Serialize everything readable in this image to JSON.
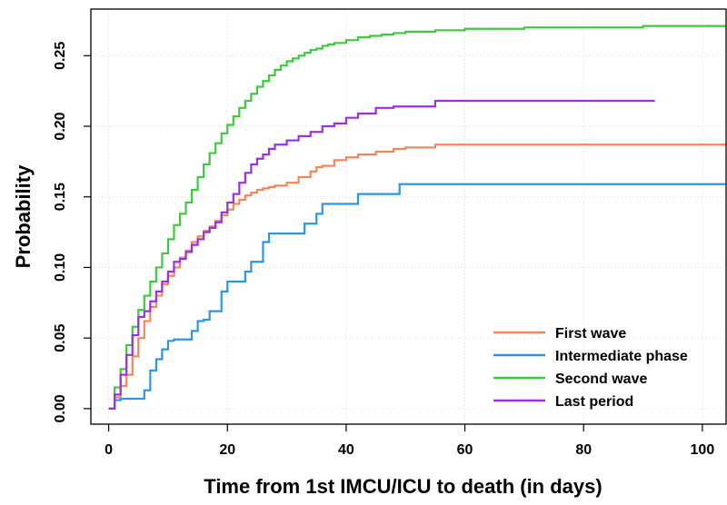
{
  "chart_data": {
    "type": "line",
    "step": true,
    "title": "",
    "xlabel": "Time from 1st IMCU/ICU to death (in days)",
    "ylabel": "Probability",
    "xlim": [
      -3,
      104
    ],
    "ylim": [
      -0.011,
      0.283
    ],
    "x_ticks": [
      0,
      20,
      40,
      60,
      80,
      100
    ],
    "x_tick_labels": [
      "0",
      "20",
      "40",
      "60",
      "80",
      "100"
    ],
    "y_ticks": [
      0.0,
      0.05,
      0.1,
      0.15,
      0.2,
      0.25
    ],
    "y_tick_labels": [
      "0.00",
      "0.05",
      "0.10",
      "0.15",
      "0.20",
      "0.25"
    ],
    "grid": true,
    "legend_position": "bottom-right",
    "series": [
      {
        "name": "First wave",
        "color": "#F0875A",
        "x": [
          0,
          1,
          2,
          3,
          4,
          5,
          6,
          7,
          8,
          9,
          10,
          11,
          12,
          13,
          14,
          15,
          16,
          17,
          18,
          19,
          20,
          21,
          22,
          23,
          24,
          25,
          26,
          27,
          28,
          30,
          32,
          34,
          35,
          36,
          38,
          40,
          42,
          45,
          48,
          50,
          55,
          104
        ],
        "y": [
          0,
          0.008,
          0.016,
          0.024,
          0.037,
          0.05,
          0.062,
          0.072,
          0.08,
          0.088,
          0.094,
          0.1,
          0.107,
          0.112,
          0.118,
          0.122,
          0.126,
          0.129,
          0.133,
          0.137,
          0.141,
          0.145,
          0.148,
          0.151,
          0.153,
          0.155,
          0.156,
          0.157,
          0.158,
          0.16,
          0.164,
          0.168,
          0.171,
          0.172,
          0.176,
          0.178,
          0.18,
          0.182,
          0.184,
          0.185,
          0.187,
          0.187
        ]
      },
      {
        "name": "Intermediate phase",
        "color": "#2E95E0",
        "x": [
          0,
          1,
          2,
          6,
          7,
          8,
          9,
          10,
          11,
          14,
          15,
          16,
          17,
          19,
          20,
          22,
          23,
          24,
          26,
          27,
          28,
          33,
          35,
          36,
          42,
          49,
          104
        ],
        "y": [
          0,
          0.006,
          0.007,
          0.013,
          0.027,
          0.035,
          0.042,
          0.048,
          0.049,
          0.055,
          0.062,
          0.063,
          0.069,
          0.083,
          0.09,
          0.09,
          0.097,
          0.104,
          0.118,
          0.124,
          0.124,
          0.131,
          0.138,
          0.145,
          0.152,
          0.159,
          0.159
        ]
      },
      {
        "name": "Second wave",
        "color": "#3EC93E",
        "x": [
          0,
          1,
          2,
          3,
          4,
          5,
          6,
          7,
          8,
          9,
          10,
          11,
          12,
          13,
          14,
          15,
          16,
          17,
          18,
          19,
          20,
          21,
          22,
          23,
          24,
          25,
          26,
          27,
          28,
          29,
          30,
          31,
          32,
          33,
          34,
          35,
          36,
          37,
          38,
          40,
          42,
          44,
          46,
          48,
          50,
          55,
          60,
          70,
          80,
          90,
          104
        ],
        "y": [
          0,
          0.015,
          0.028,
          0.045,
          0.058,
          0.07,
          0.08,
          0.09,
          0.1,
          0.11,
          0.12,
          0.13,
          0.138,
          0.146,
          0.155,
          0.164,
          0.173,
          0.181,
          0.188,
          0.195,
          0.201,
          0.207,
          0.213,
          0.218,
          0.223,
          0.228,
          0.232,
          0.236,
          0.24,
          0.243,
          0.246,
          0.248,
          0.25,
          0.252,
          0.254,
          0.255,
          0.257,
          0.258,
          0.259,
          0.261,
          0.263,
          0.264,
          0.265,
          0.266,
          0.267,
          0.268,
          0.269,
          0.27,
          0.27,
          0.271,
          0.271
        ]
      },
      {
        "name": "Last period",
        "color": "#9B30E0",
        "x": [
          0,
          1,
          2,
          3,
          4,
          5,
          6,
          7,
          8,
          9,
          10,
          11,
          12,
          13,
          14,
          15,
          16,
          17,
          18,
          19,
          20,
          21,
          22,
          23,
          24,
          25,
          26,
          27,
          28,
          30,
          32,
          34,
          36,
          38,
          40,
          42,
          45,
          48,
          55,
          60,
          92
        ],
        "y": [
          0,
          0.01,
          0.024,
          0.038,
          0.052,
          0.065,
          0.069,
          0.076,
          0.083,
          0.09,
          0.097,
          0.104,
          0.106,
          0.111,
          0.116,
          0.12,
          0.125,
          0.128,
          0.132,
          0.139,
          0.146,
          0.152,
          0.16,
          0.167,
          0.173,
          0.177,
          0.18,
          0.184,
          0.187,
          0.19,
          0.193,
          0.196,
          0.2,
          0.202,
          0.206,
          0.209,
          0.213,
          0.214,
          0.218,
          0.218,
          0.218
        ]
      }
    ]
  }
}
